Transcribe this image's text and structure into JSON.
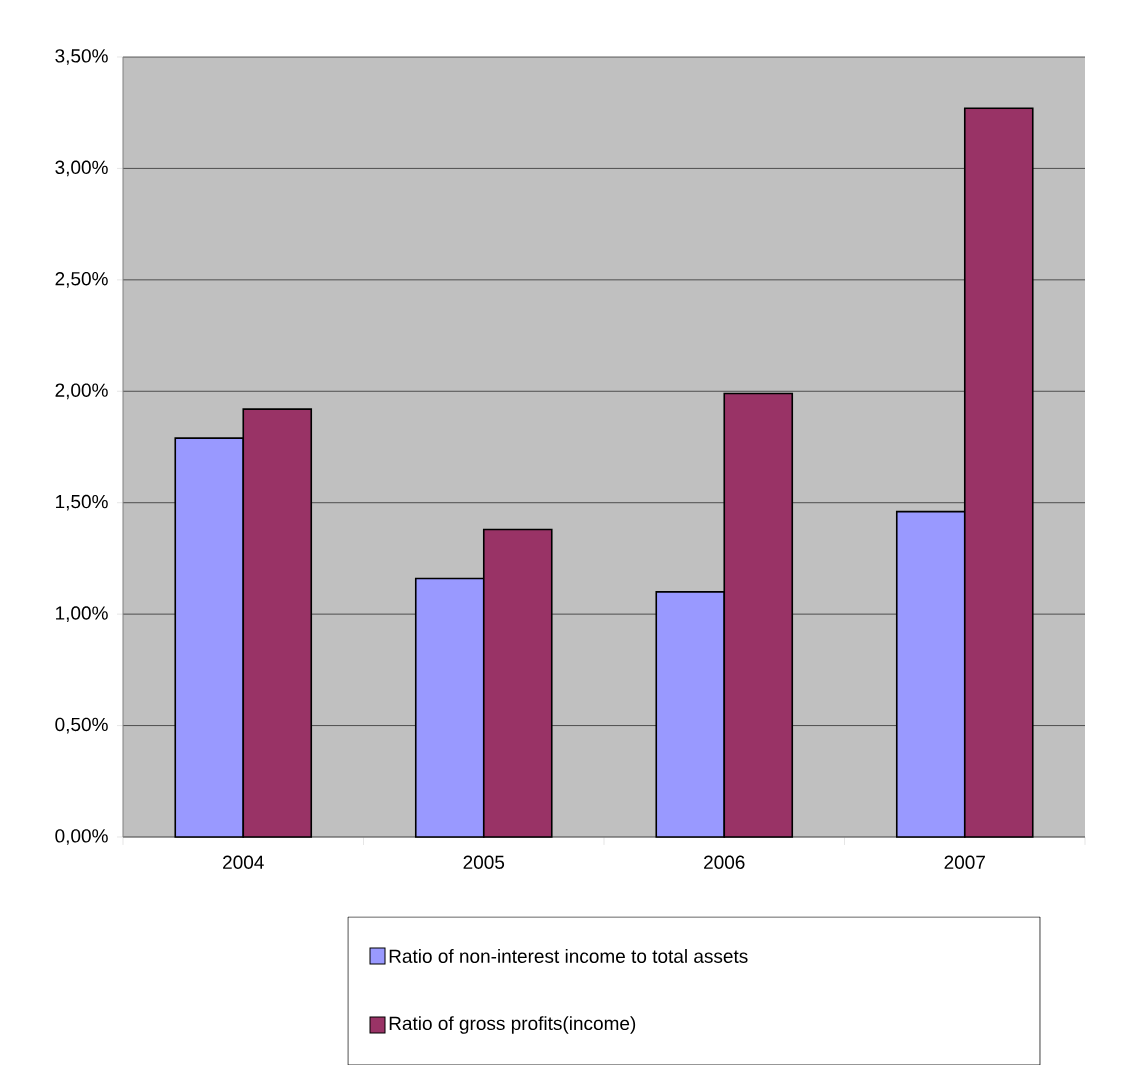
{
  "chart_data": {
    "type": "bar",
    "categories": [
      "2004",
      "2005",
      "2006",
      "2007"
    ],
    "series": [
      {
        "name": "Ratio of non-interest income to total assets",
        "color": "#9999ff",
        "values": [
          1.79,
          1.16,
          1.1,
          1.46
        ]
      },
      {
        "name": "Ratio of gross profits(income)",
        "color": "#993366",
        "values": [
          1.92,
          1.38,
          1.99,
          3.27
        ]
      }
    ],
    "ylim": [
      0,
      3.5
    ],
    "yticks": [
      {
        "value": 0,
        "label": "0,00%"
      },
      {
        "value": 0.5,
        "label": "0,50%"
      },
      {
        "value": 1,
        "label": "1,00%"
      },
      {
        "value": 1.5,
        "label": "1,50%"
      },
      {
        "value": 2,
        "label": "2,00%"
      },
      {
        "value": 2.5,
        "label": "2,50%"
      },
      {
        "value": 3,
        "label": "3,00%"
      },
      {
        "value": 3.5,
        "label": "3,50%"
      }
    ],
    "grid": "y",
    "legend": "bottom"
  }
}
